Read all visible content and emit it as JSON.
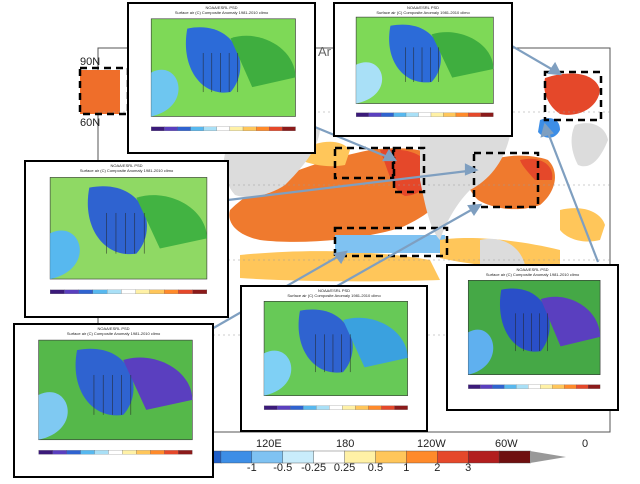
{
  "map": {
    "lat_labels": [
      "90N",
      "60N"
    ],
    "lon_labels": [
      "120E",
      "180",
      "120W",
      "60W",
      "0"
    ],
    "corner_text": "Ar"
  },
  "colorbar": {
    "labels": [
      "-1",
      "-0.5",
      "-0.25",
      "0.25",
      "0.5",
      "1",
      "2",
      "3"
    ],
    "colors": [
      "#1f5fc8",
      "#3d8ee6",
      "#7fc2f2",
      "#c9ecfb",
      "#ffffff",
      "#fff1a6",
      "#ffc65a",
      "#ff8a2a",
      "#e5482a",
      "#b21e1e",
      "#6f0f0f"
    ]
  },
  "insets": [
    {
      "title": "NOAA/ESRL PSD",
      "subtitle": "Surface air (C) Composite Anomaly 1981-2010 climo"
    },
    {
      "title": "NOAA/ESRL PSD",
      "subtitle": "Surface air (C) Composite Anomaly 1981-2010 climo"
    },
    {
      "title": "NOAA/ESRL PSD",
      "subtitle": "Surface air (C) Composite Anomaly 1981-2010 climo"
    },
    {
      "title": "NOAA/ESRL PSD",
      "subtitle": "Surface air (C) Composite Anomaly 1981-2010 climo"
    },
    {
      "title": "NOAA/ESRL PSD",
      "subtitle": "Surface air (C) Composite Anomaly 1981-2010 climo"
    },
    {
      "title": "NOAA/ESRL PSD",
      "subtitle": "Surface air (C) Composite Anomaly 1981-2010 climo"
    }
  ]
}
